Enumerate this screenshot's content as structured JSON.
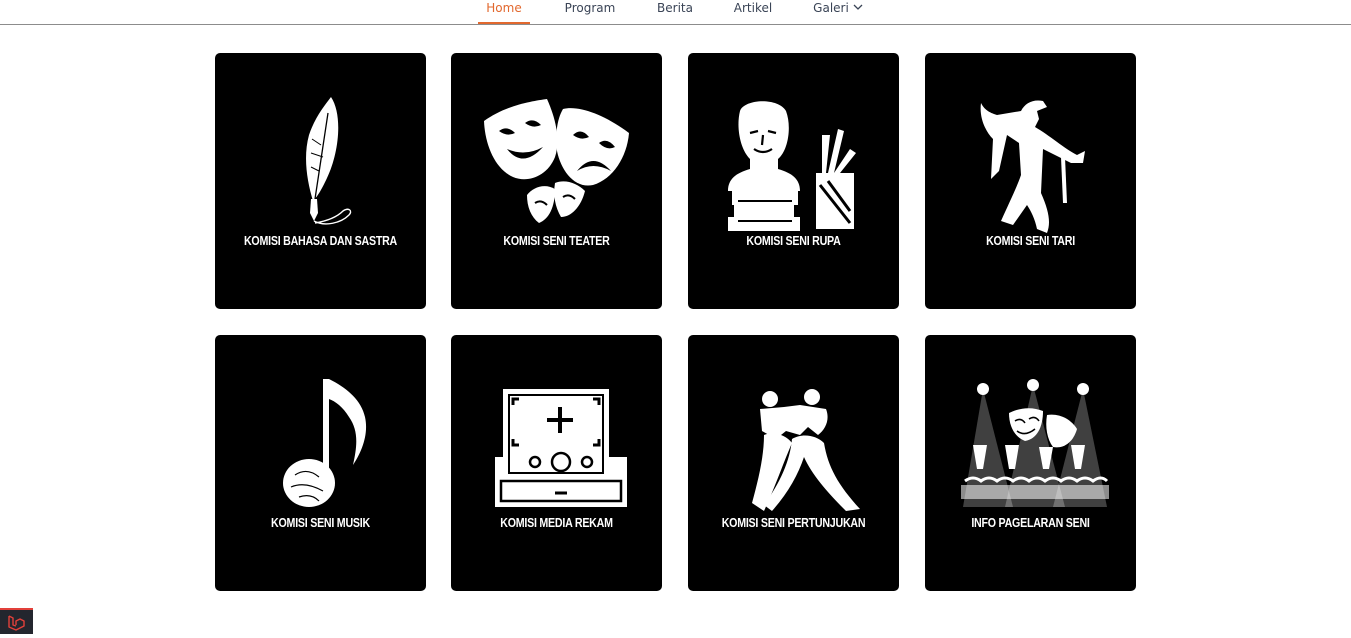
{
  "nav": {
    "items": [
      {
        "label": "Home",
        "active": true
      },
      {
        "label": "Program",
        "active": false
      },
      {
        "label": "Berita",
        "active": false
      },
      {
        "label": "Artikel",
        "active": false
      },
      {
        "label": "Galeri",
        "active": false,
        "has_dropdown": true
      }
    ],
    "active_color": "#e2682e",
    "text_color": "#3a4456"
  },
  "cards": [
    {
      "label": "KOMISI BAHASA DAN SASTRA",
      "icon": "quill-pen-icon"
    },
    {
      "label": "KOMISI SENI TEATER",
      "icon": "theater-masks-icon"
    },
    {
      "label": "KOMISI SENI RUPA",
      "icon": "bust-sculpture-icon"
    },
    {
      "label": "KOMISI SENI TARI",
      "icon": "dancer-icon"
    },
    {
      "label": "KOMISI SENI MUSIK",
      "icon": "music-note-icon"
    },
    {
      "label": "KOMISI MEDIA REKAM",
      "icon": "camera-viewfinder-icon"
    },
    {
      "label": "KOMISI SENI PERTUNJUKAN",
      "icon": "dancing-couple-icon"
    },
    {
      "label": "INFO PAGELARAN SENI",
      "icon": "stage-performance-icon"
    }
  ],
  "colors": {
    "card_bg": "#000000",
    "card_text": "#ffffff",
    "badge_accent": "#e2403a"
  },
  "corner_badge": {
    "icon": "laravel-logo-icon"
  }
}
